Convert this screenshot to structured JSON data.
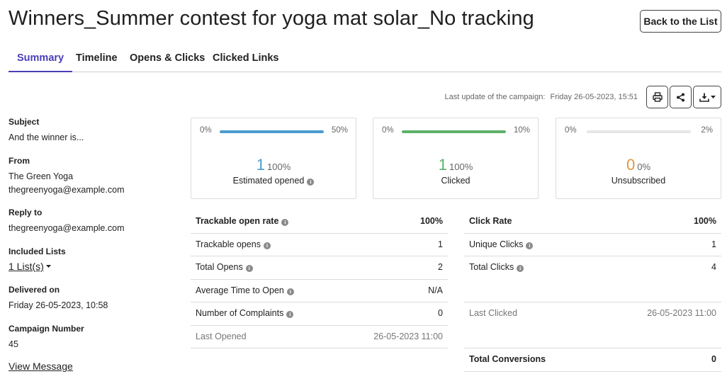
{
  "header": {
    "title": "Winners_Summer contest for yoga mat solar_No tracking",
    "back_label": "Back to the List"
  },
  "tabs": [
    {
      "label": "Summary",
      "active": true
    },
    {
      "label": "Timeline",
      "active": false
    },
    {
      "label": "Opens & Clicks",
      "active": false
    },
    {
      "label": "Clicked Links",
      "active": false
    }
  ],
  "toolbar": {
    "last_update_label": "Last update of the campaign:",
    "last_update_value": "Friday 26-05-2023, 15:51",
    "icons": [
      "print-icon",
      "share-icon",
      "download-icon"
    ]
  },
  "details": {
    "subject_label": "Subject",
    "subject": "And the winner is...",
    "from_label": "From",
    "from_name": "The Green Yoga",
    "from_email": "thegreenyoga@example.com",
    "reply_label": "Reply to",
    "reply_email": "thegreenyoga@example.com",
    "lists_label": "Included Lists",
    "lists_value": "1 List(s)",
    "delivered_label": "Delivered on",
    "delivered_value": "Friday 26-05-2023, 10:58",
    "campaign_label": "Campaign Number",
    "campaign_value": "45",
    "view_message": "View Message"
  },
  "cards": [
    {
      "min": "0%",
      "max": "50%",
      "fill_fraction": 1.0,
      "bar_color": "#4a9bcf",
      "number": "1",
      "number_color": "#4a9bcf",
      "percent": "100%",
      "caption": "Estimated opened",
      "info": true
    },
    {
      "min": "0%",
      "max": "10%",
      "fill_fraction": 1.0,
      "bar_color": "#5cb168",
      "number": "1",
      "number_color": "#5cb168",
      "percent": "100%",
      "caption": "Clicked",
      "info": false
    },
    {
      "min": "0%",
      "max": "2%",
      "fill_fraction": 0.0,
      "bar_color": "#e6e6e6",
      "number": "0",
      "number_color": "#e0973e",
      "percent": "0%",
      "caption": "Unsubscribed",
      "info": false
    }
  ],
  "opens_table": {
    "header": {
      "label": "Trackable open rate",
      "value": "100%"
    },
    "rows": [
      {
        "label": "Trackable opens",
        "value": "1"
      },
      {
        "label": "Total Opens",
        "value": "2"
      },
      {
        "label": "Average Time to Open",
        "value": "N/A"
      },
      {
        "label": "Number of Complaints",
        "value": "0"
      }
    ],
    "last": {
      "label": "Last Opened",
      "value": "26-05-2023 11:00"
    }
  },
  "clicks_table": {
    "header": {
      "label": "Click Rate",
      "value": "100%"
    },
    "rows": [
      {
        "label": "Unique Clicks",
        "value": "1"
      },
      {
        "label": "Total Clicks",
        "value": "4"
      }
    ],
    "last": {
      "label": "Last Clicked",
      "value": "26-05-2023 11:00"
    },
    "conversions": {
      "label": "Total Conversions",
      "value": "0"
    }
  }
}
